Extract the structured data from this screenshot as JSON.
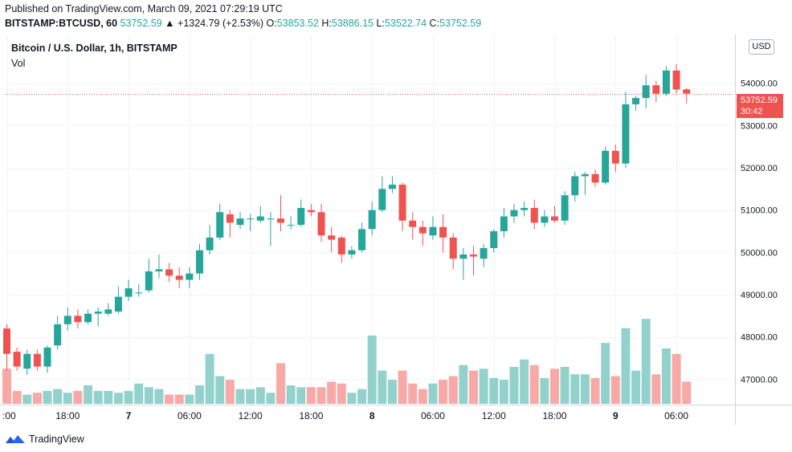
{
  "header": {
    "published": "Published on TradingView.com, March 09, 2021 07:29:19 UTC",
    "symbol": "BITSTAMP:BTCUSD, 60",
    "last_price": "53752.59",
    "change": "▲ +1324.79 (+2.53%)",
    "open_label": "O:",
    "open": "53853.52",
    "high_label": "H:",
    "high": "53886.15",
    "low_label": "L:",
    "low": "53522.74",
    "close_label": "C:",
    "close": "53752.59"
  },
  "legend": {
    "title": "Bitcoin / U.S. Dollar, 1h, BITSTAMP",
    "volume": "Vol"
  },
  "currency_button": "USD",
  "price_tag": {
    "price": "53752.59",
    "countdown": "30:42"
  },
  "footer": {
    "brand": "TradingView",
    "logo_icon": "tradingview-logo-icon"
  },
  "colors": {
    "up": "#26a69a",
    "down": "#ef5350",
    "up_volume": "#93d2cc",
    "down_volume": "#f7a9a7"
  },
  "chart_data": {
    "type": "candlestick",
    "interval": "1h",
    "title": "Bitcoin / U.S. Dollar, 1h, BITSTAMP",
    "ylim": [
      46400,
      55150
    ],
    "grid": true,
    "y_ticks": [
      47000,
      48000,
      49000,
      50000,
      51000,
      52000,
      53000,
      54000
    ],
    "y_tick_labels": [
      "47000.00",
      "48000.00",
      "49000.00",
      "50000.00",
      "51000.00",
      "52000.00",
      "53000.00",
      "54000.00"
    ],
    "x_tick_labels": [
      {
        "label": ":00",
        "index": 0,
        "bold": false
      },
      {
        "label": "18:00",
        "index": 6,
        "bold": false
      },
      {
        "label": "7",
        "index": 12,
        "bold": true
      },
      {
        "label": "06:00",
        "index": 18,
        "bold": false
      },
      {
        "label": "12:00",
        "index": 24,
        "bold": false
      },
      {
        "label": "18:00",
        "index": 30,
        "bold": false
      },
      {
        "label": "8",
        "index": 36,
        "bold": true
      },
      {
        "label": "06:00",
        "index": 42,
        "bold": false
      },
      {
        "label": "12:00",
        "index": 48,
        "bold": false
      },
      {
        "label": "18:00",
        "index": 54,
        "bold": false
      },
      {
        "label": "9",
        "index": 60,
        "bold": true
      },
      {
        "label": "06:00",
        "index": 66,
        "bold": false
      }
    ],
    "last_price_line": 53752.59,
    "candles": [
      {
        "o": 48200,
        "h": 48300,
        "l": 47200,
        "c": 47600,
        "v": 0.95
      },
      {
        "o": 47650,
        "h": 47750,
        "l": 47200,
        "c": 47300,
        "v": 0.35
      },
      {
        "o": 47250,
        "h": 47700,
        "l": 47100,
        "c": 47600,
        "v": 0.25
      },
      {
        "o": 47600,
        "h": 47700,
        "l": 47200,
        "c": 47300,
        "v": 0.3
      },
      {
        "o": 47300,
        "h": 47800,
        "l": 47150,
        "c": 47750,
        "v": 0.35
      },
      {
        "o": 47800,
        "h": 48500,
        "l": 47700,
        "c": 48300,
        "v": 0.4
      },
      {
        "o": 48300,
        "h": 48700,
        "l": 48150,
        "c": 48500,
        "v": 0.3
      },
      {
        "o": 48500,
        "h": 48650,
        "l": 48200,
        "c": 48350,
        "v": 0.35
      },
      {
        "o": 48350,
        "h": 48650,
        "l": 48300,
        "c": 48550,
        "v": 0.5
      },
      {
        "o": 48550,
        "h": 48700,
        "l": 48250,
        "c": 48600,
        "v": 0.35
      },
      {
        "o": 48550,
        "h": 48800,
        "l": 48500,
        "c": 48650,
        "v": 0.35
      },
      {
        "o": 48600,
        "h": 49200,
        "l": 48550,
        "c": 48950,
        "v": 0.3
      },
      {
        "o": 48950,
        "h": 49350,
        "l": 48850,
        "c": 49150,
        "v": 0.35
      },
      {
        "o": 49050,
        "h": 49250,
        "l": 48950,
        "c": 49050,
        "v": 0.55
      },
      {
        "o": 49100,
        "h": 49850,
        "l": 49050,
        "c": 49550,
        "v": 0.45
      },
      {
        "o": 49550,
        "h": 49950,
        "l": 49400,
        "c": 49600,
        "v": 0.4
      },
      {
        "o": 49600,
        "h": 49750,
        "l": 49300,
        "c": 49450,
        "v": 0.25
      },
      {
        "o": 49450,
        "h": 49650,
        "l": 49150,
        "c": 49350,
        "v": 0.25
      },
      {
        "o": 49350,
        "h": 49650,
        "l": 49150,
        "c": 49500,
        "v": 0.25
      },
      {
        "o": 49500,
        "h": 50200,
        "l": 49350,
        "c": 50050,
        "v": 0.5
      },
      {
        "o": 50050,
        "h": 50650,
        "l": 49950,
        "c": 50350,
        "v": 1.35
      },
      {
        "o": 50350,
        "h": 51150,
        "l": 50300,
        "c": 50950,
        "v": 0.75
      },
      {
        "o": 50900,
        "h": 51000,
        "l": 50350,
        "c": 50700,
        "v": 0.65
      },
      {
        "o": 50650,
        "h": 50950,
        "l": 50550,
        "c": 50800,
        "v": 0.4
      },
      {
        "o": 50800,
        "h": 50900,
        "l": 50500,
        "c": 50800,
        "v": 0.4
      },
      {
        "o": 50750,
        "h": 51100,
        "l": 50700,
        "c": 50850,
        "v": 0.45
      },
      {
        "o": 50800,
        "h": 50950,
        "l": 50150,
        "c": 50800,
        "v": 0.3
      },
      {
        "o": 50800,
        "h": 51350,
        "l": 50500,
        "c": 50700,
        "v": 1.1
      },
      {
        "o": 50650,
        "h": 50850,
        "l": 50550,
        "c": 50650,
        "v": 0.5
      },
      {
        "o": 50650,
        "h": 51250,
        "l": 50600,
        "c": 51050,
        "v": 0.45
      },
      {
        "o": 51000,
        "h": 51150,
        "l": 50850,
        "c": 50950,
        "v": 0.45
      },
      {
        "o": 50950,
        "h": 51150,
        "l": 50250,
        "c": 50400,
        "v": 0.45
      },
      {
        "o": 50400,
        "h": 50600,
        "l": 50000,
        "c": 50300,
        "v": 0.6
      },
      {
        "o": 50350,
        "h": 50400,
        "l": 49750,
        "c": 49950,
        "v": 0.55
      },
      {
        "o": 49950,
        "h": 50150,
        "l": 49850,
        "c": 50050,
        "v": 0.3
      },
      {
        "o": 50050,
        "h": 50700,
        "l": 50000,
        "c": 50550,
        "v": 0.4
      },
      {
        "o": 50550,
        "h": 51200,
        "l": 50400,
        "c": 51000,
        "v": 1.85
      },
      {
        "o": 51000,
        "h": 51800,
        "l": 50950,
        "c": 51500,
        "v": 0.9
      },
      {
        "o": 51500,
        "h": 51800,
        "l": 51400,
        "c": 51600,
        "v": 0.65
      },
      {
        "o": 51600,
        "h": 51650,
        "l": 50500,
        "c": 50750,
        "v": 0.9
      },
      {
        "o": 50750,
        "h": 50950,
        "l": 50300,
        "c": 50600,
        "v": 0.55
      },
      {
        "o": 50600,
        "h": 50750,
        "l": 50150,
        "c": 50450,
        "v": 0.4
      },
      {
        "o": 50400,
        "h": 50850,
        "l": 50300,
        "c": 50600,
        "v": 0.55
      },
      {
        "o": 50600,
        "h": 50900,
        "l": 50000,
        "c": 50350,
        "v": 0.65
      },
      {
        "o": 50350,
        "h": 50450,
        "l": 49600,
        "c": 49850,
        "v": 0.75
      },
      {
        "o": 49850,
        "h": 50100,
        "l": 49350,
        "c": 49950,
        "v": 1.05
      },
      {
        "o": 49950,
        "h": 50150,
        "l": 49450,
        "c": 49900,
        "v": 0.9
      },
      {
        "o": 49850,
        "h": 50200,
        "l": 49650,
        "c": 50100,
        "v": 0.95
      },
      {
        "o": 50100,
        "h": 50550,
        "l": 50000,
        "c": 50500,
        "v": 0.7
      },
      {
        "o": 50500,
        "h": 51050,
        "l": 50350,
        "c": 50850,
        "v": 0.65
      },
      {
        "o": 50850,
        "h": 51150,
        "l": 50700,
        "c": 51000,
        "v": 1.0
      },
      {
        "o": 51000,
        "h": 51200,
        "l": 50850,
        "c": 51050,
        "v": 1.2
      },
      {
        "o": 51050,
        "h": 51250,
        "l": 50550,
        "c": 50700,
        "v": 1.05
      },
      {
        "o": 50700,
        "h": 51000,
        "l": 50600,
        "c": 50850,
        "v": 0.7
      },
      {
        "o": 50850,
        "h": 51100,
        "l": 50700,
        "c": 50750,
        "v": 0.95
      },
      {
        "o": 50750,
        "h": 51450,
        "l": 50650,
        "c": 51350,
        "v": 1.0
      },
      {
        "o": 51350,
        "h": 51900,
        "l": 51200,
        "c": 51800,
        "v": 0.8
      },
      {
        "o": 51800,
        "h": 51900,
        "l": 51350,
        "c": 51850,
        "v": 0.8
      },
      {
        "o": 51850,
        "h": 51950,
        "l": 51550,
        "c": 51650,
        "v": 0.7
      },
      {
        "o": 51650,
        "h": 52500,
        "l": 51600,
        "c": 52400,
        "v": 1.65
      },
      {
        "o": 52400,
        "h": 52550,
        "l": 51900,
        "c": 52100,
        "v": 0.75
      },
      {
        "o": 52100,
        "h": 53800,
        "l": 52000,
        "c": 53500,
        "v": 2.05
      },
      {
        "o": 53500,
        "h": 53700,
        "l": 53350,
        "c": 53650,
        "v": 0.9
      },
      {
        "o": 53650,
        "h": 54200,
        "l": 53400,
        "c": 53950,
        "v": 2.3
      },
      {
        "o": 53950,
        "h": 54050,
        "l": 53550,
        "c": 53750,
        "v": 0.8
      },
      {
        "o": 53750,
        "h": 54400,
        "l": 53700,
        "c": 54300,
        "v": 1.5
      },
      {
        "o": 54300,
        "h": 54450,
        "l": 53750,
        "c": 53850,
        "v": 1.35
      },
      {
        "o": 53853.52,
        "h": 53886.15,
        "l": 53522.74,
        "c": 53752.59,
        "v": 0.6
      }
    ]
  }
}
